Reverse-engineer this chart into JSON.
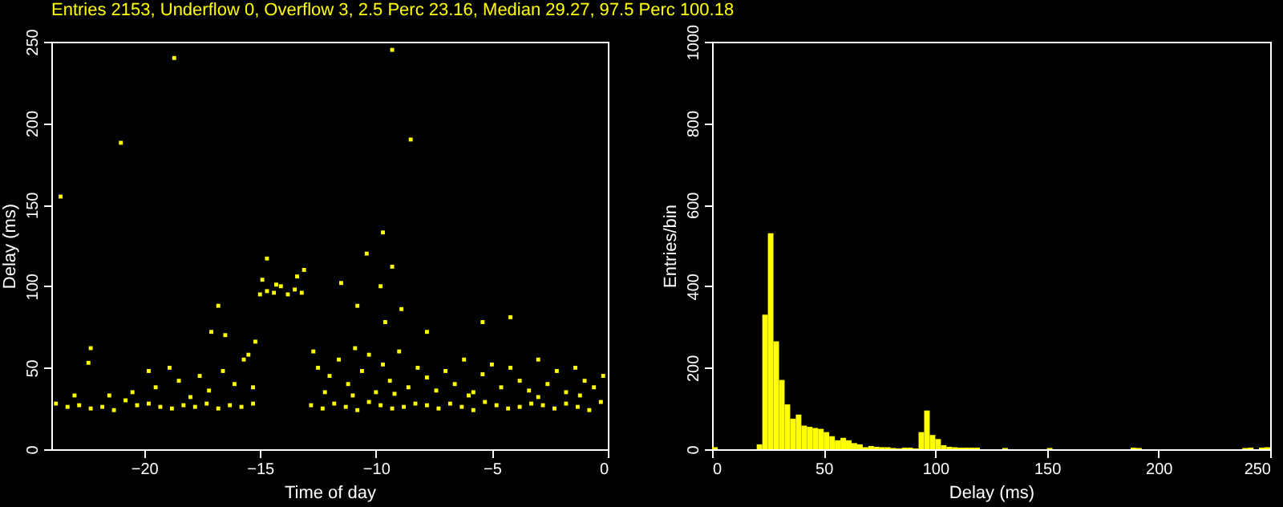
{
  "chart_data": [
    {
      "type": "scatter",
      "title": "Entries 2153, Underflow 0, Overflow 3, 2.5 Perc  23.16, Median 29.27, 97.5 Perc 100.18",
      "xlabel": "Time of day",
      "ylabel": "Delay (ms)",
      "color": "#ffff00",
      "marker": "square",
      "x": [
        -23.8,
        -23.3,
        -22.8,
        -22.3,
        -21.8,
        -21.3,
        -20.8,
        -20.3,
        -19.8,
        -19.3,
        -18.8,
        -18.3,
        -17.8,
        -17.3,
        -16.8,
        -16.3,
        -15.8,
        -15.3,
        -20.5,
        -19.5,
        -18.5,
        -17.6,
        -17.2,
        -16.6,
        -16.1,
        -15.7,
        -15.3,
        -18.0,
        -21.5,
        -23.0,
        -15.0,
        -14.7,
        -14.4,
        -14.1,
        -13.8,
        -13.5,
        -13.2,
        -14.9,
        -13.4,
        -14.3,
        -12.8,
        -12.3,
        -11.8,
        -11.3,
        -10.8,
        -10.3,
        -9.8,
        -9.3,
        -8.8,
        -8.3,
        -7.8,
        -7.3,
        -6.8,
        -6.3,
        -5.8,
        -5.3,
        -4.8,
        -4.3,
        -3.8,
        -3.3,
        -2.8,
        -2.3,
        -1.8,
        -1.3,
        -0.8,
        -0.3,
        -12.7,
        -12.5,
        -12.0,
        -11.6,
        -11.2,
        -10.9,
        -10.6,
        -10.3,
        -10.0,
        -9.7,
        -9.4,
        -9.0,
        -8.6,
        -8.2,
        -7.8,
        -7.4,
        -7.0,
        -6.6,
        -6.2,
        -5.8,
        -5.4,
        -5.0,
        -4.6,
        -4.2,
        -3.8,
        -3.4,
        -3.0,
        -2.6,
        -2.2,
        -1.8,
        -1.4,
        -1.0,
        -0.6,
        -0.2,
        -12.2,
        -11.0,
        -9.2,
        -6.0,
        -3.0,
        -1.2,
        -23.6,
        -21.0,
        -18.7,
        -9.3,
        -8.5,
        -9.7,
        -10.4,
        -9.3,
        -14.7,
        -13.1,
        -11.5,
        -9.8,
        -10.8,
        -9.6,
        -8.9,
        -5.4,
        -4.2,
        -7.8,
        -16.8,
        -17.1,
        -22.3,
        -22.4,
        -19.8,
        -18.9,
        -16.5,
        -15.2,
        -15.5
      ],
      "values": [
        28,
        26,
        27,
        25,
        26,
        24,
        30,
        27,
        28,
        26,
        25,
        27,
        26,
        28,
        25,
        27,
        26,
        28,
        35,
        38,
        42,
        45,
        36,
        48,
        40,
        55,
        38,
        32,
        33,
        33,
        95,
        97,
        96,
        100,
        95,
        98,
        96,
        104,
        106,
        101,
        27,
        25,
        28,
        26,
        24,
        29,
        27,
        25,
        26,
        28,
        27,
        25,
        28,
        26,
        24,
        29,
        27,
        25,
        26,
        28,
        27,
        25,
        28,
        26,
        24,
        29,
        60,
        50,
        45,
        55,
        40,
        62,
        48,
        58,
        35,
        52,
        42,
        60,
        38,
        50,
        44,
        36,
        48,
        40,
        55,
        35,
        46,
        52,
        38,
        50,
        42,
        36,
        55,
        40,
        48,
        35,
        50,
        42,
        38,
        45,
        35,
        33,
        34,
        33,
        32,
        33,
        155,
        188,
        240,
        245,
        190,
        133,
        120,
        112,
        117,
        110,
        102,
        100,
        88,
        78,
        86,
        78,
        81,
        72,
        88,
        72,
        62,
        53,
        48,
        50,
        70,
        66,
        58
      ],
      "xlim": [
        -24,
        0
      ],
      "xticks": [
        -20,
        -15,
        -10,
        -5,
        0
      ],
      "ylim": [
        0,
        250
      ],
      "yticks": [
        0,
        50,
        100,
        150,
        200,
        250
      ]
    },
    {
      "type": "histogram",
      "xlabel": "Delay (ms)",
      "ylabel": "Entries/bin",
      "color": "#ffff00",
      "bins": [
        0,
        2.5,
        5,
        7.5,
        10,
        12.5,
        15,
        17.5,
        20,
        22.5,
        25,
        27.5,
        30,
        32.5,
        35,
        37.5,
        40,
        42.5,
        45,
        47.5,
        50,
        52.5,
        55,
        57.5,
        60,
        62.5,
        65,
        67.5,
        70,
        72.5,
        75,
        77.5,
        80,
        82.5,
        85,
        87.5,
        90,
        92.5,
        95,
        97.5,
        100,
        102.5,
        105,
        107.5,
        110,
        112.5,
        115,
        117.5,
        120,
        122.5,
        125,
        127.5,
        130,
        132.5,
        135,
        137.5,
        140,
        142.5,
        145,
        147.5,
        150,
        152.5,
        155,
        157.5,
        160,
        162.5,
        165,
        167.5,
        170,
        172.5,
        175,
        177.5,
        180,
        182.5,
        185,
        187.5,
        190,
        192.5,
        195,
        197.5,
        200,
        202.5,
        205,
        207.5,
        210,
        212.5,
        215,
        217.5,
        220,
        222.5,
        225,
        227.5,
        230,
        232.5,
        235,
        237.5,
        240,
        242.5,
        245,
        247.5,
        250
      ],
      "values": [
        5,
        0,
        0,
        0,
        0,
        0,
        0,
        0,
        12,
        330,
        530,
        265,
        170,
        110,
        75,
        85,
        58,
        55,
        52,
        50,
        42,
        32,
        22,
        28,
        22,
        15,
        12,
        5,
        8,
        6,
        5,
        5,
        3,
        2,
        4,
        4,
        2,
        42,
        95,
        35,
        25,
        10,
        6,
        5,
        4,
        4,
        4,
        4,
        0,
        0,
        0,
        0,
        3,
        0,
        0,
        0,
        0,
        0,
        0,
        0,
        3,
        0,
        0,
        0,
        0,
        0,
        0,
        0,
        0,
        0,
        0,
        0,
        0,
        0,
        0,
        4,
        3,
        0,
        0,
        0,
        0,
        0,
        0,
        0,
        0,
        0,
        0,
        0,
        0,
        0,
        0,
        0,
        0,
        0,
        0,
        3,
        4,
        0,
        4,
        5
      ],
      "xlim": [
        0,
        250
      ],
      "xticks": [
        0,
        50,
        100,
        150,
        200,
        250
      ],
      "ylim": [
        0,
        1000
      ],
      "yticks": [
        0,
        200,
        400,
        600,
        800,
        1000
      ]
    }
  ]
}
